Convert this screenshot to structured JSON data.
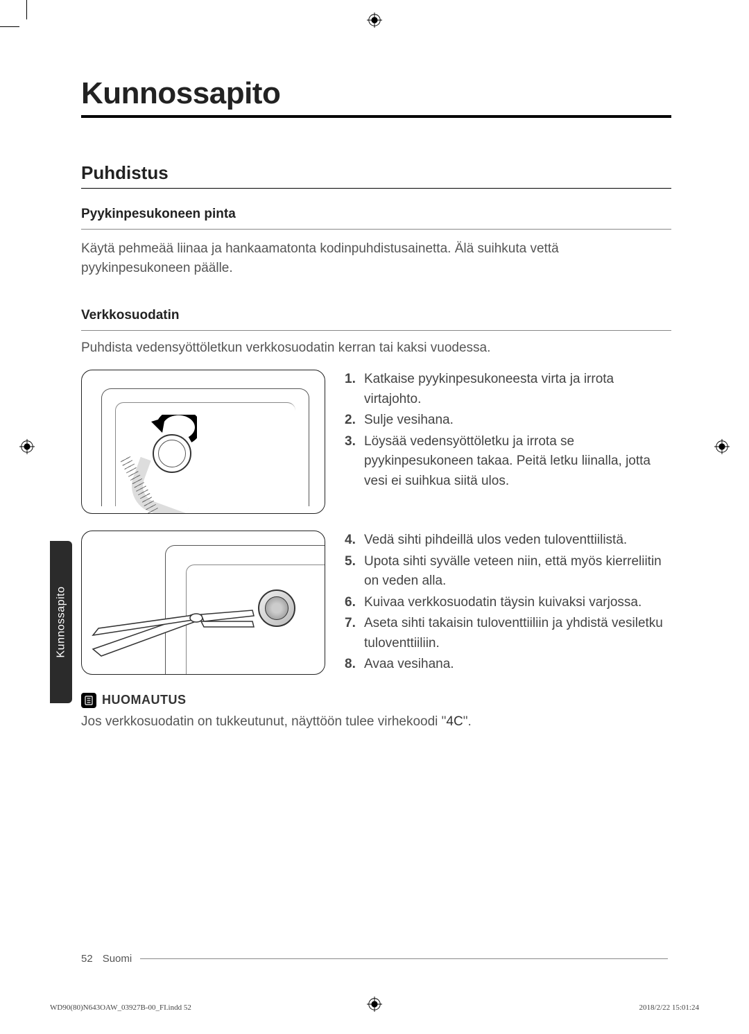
{
  "title": "Kunnossapito",
  "side_tab": "Kunnossapito",
  "section": "Puhdistus",
  "block1": {
    "heading": "Pyykinpesukoneen pinta",
    "text": "Käytä pehmeää liinaa ja hankaamatonta kodinpuhdistusainetta. Älä suihkuta vettä pyykinpesukoneen päälle."
  },
  "block2": {
    "heading": "Verkkosuodatin",
    "intro": "Puhdista vedensyöttöletkun verkkosuodatin kerran tai kaksi vuodessa.",
    "steps_a": [
      "Katkaise pyykinpesukoneesta virta ja irrota virtajohto.",
      "Sulje vesihana.",
      "Löysää vedensyöttöletku ja irrota se pyykinpesukoneen takaa. Peitä letku liinalla, jotta vesi ei suihkua siitä ulos."
    ],
    "steps_b": [
      "Vedä sihti pihdeillä ulos veden tuloventtiilistä.",
      "Upota sihti syvälle veteen niin, että myös kierreliitin on veden alla.",
      "Kuivaa verkkosuodatin täysin kuivaksi varjossa.",
      "Aseta sihti takaisin tuloventtiiliin ja yhdistä vesiletku tuloventtiiliin.",
      "Avaa vesihana."
    ]
  },
  "note": {
    "label": "HUOMAUTUS",
    "text_pre": "Jos verkkosuodatin on tukkeutunut, näyttöön tulee virhekoodi \"",
    "code": "4C",
    "text_post": "\"."
  },
  "footer": {
    "page": "52",
    "lang": "Suomi"
  },
  "print": {
    "left": "WD90(80)N643OAW_03927B-00_FI.indd   52",
    "right": "2018/2/22   15:01:24"
  }
}
